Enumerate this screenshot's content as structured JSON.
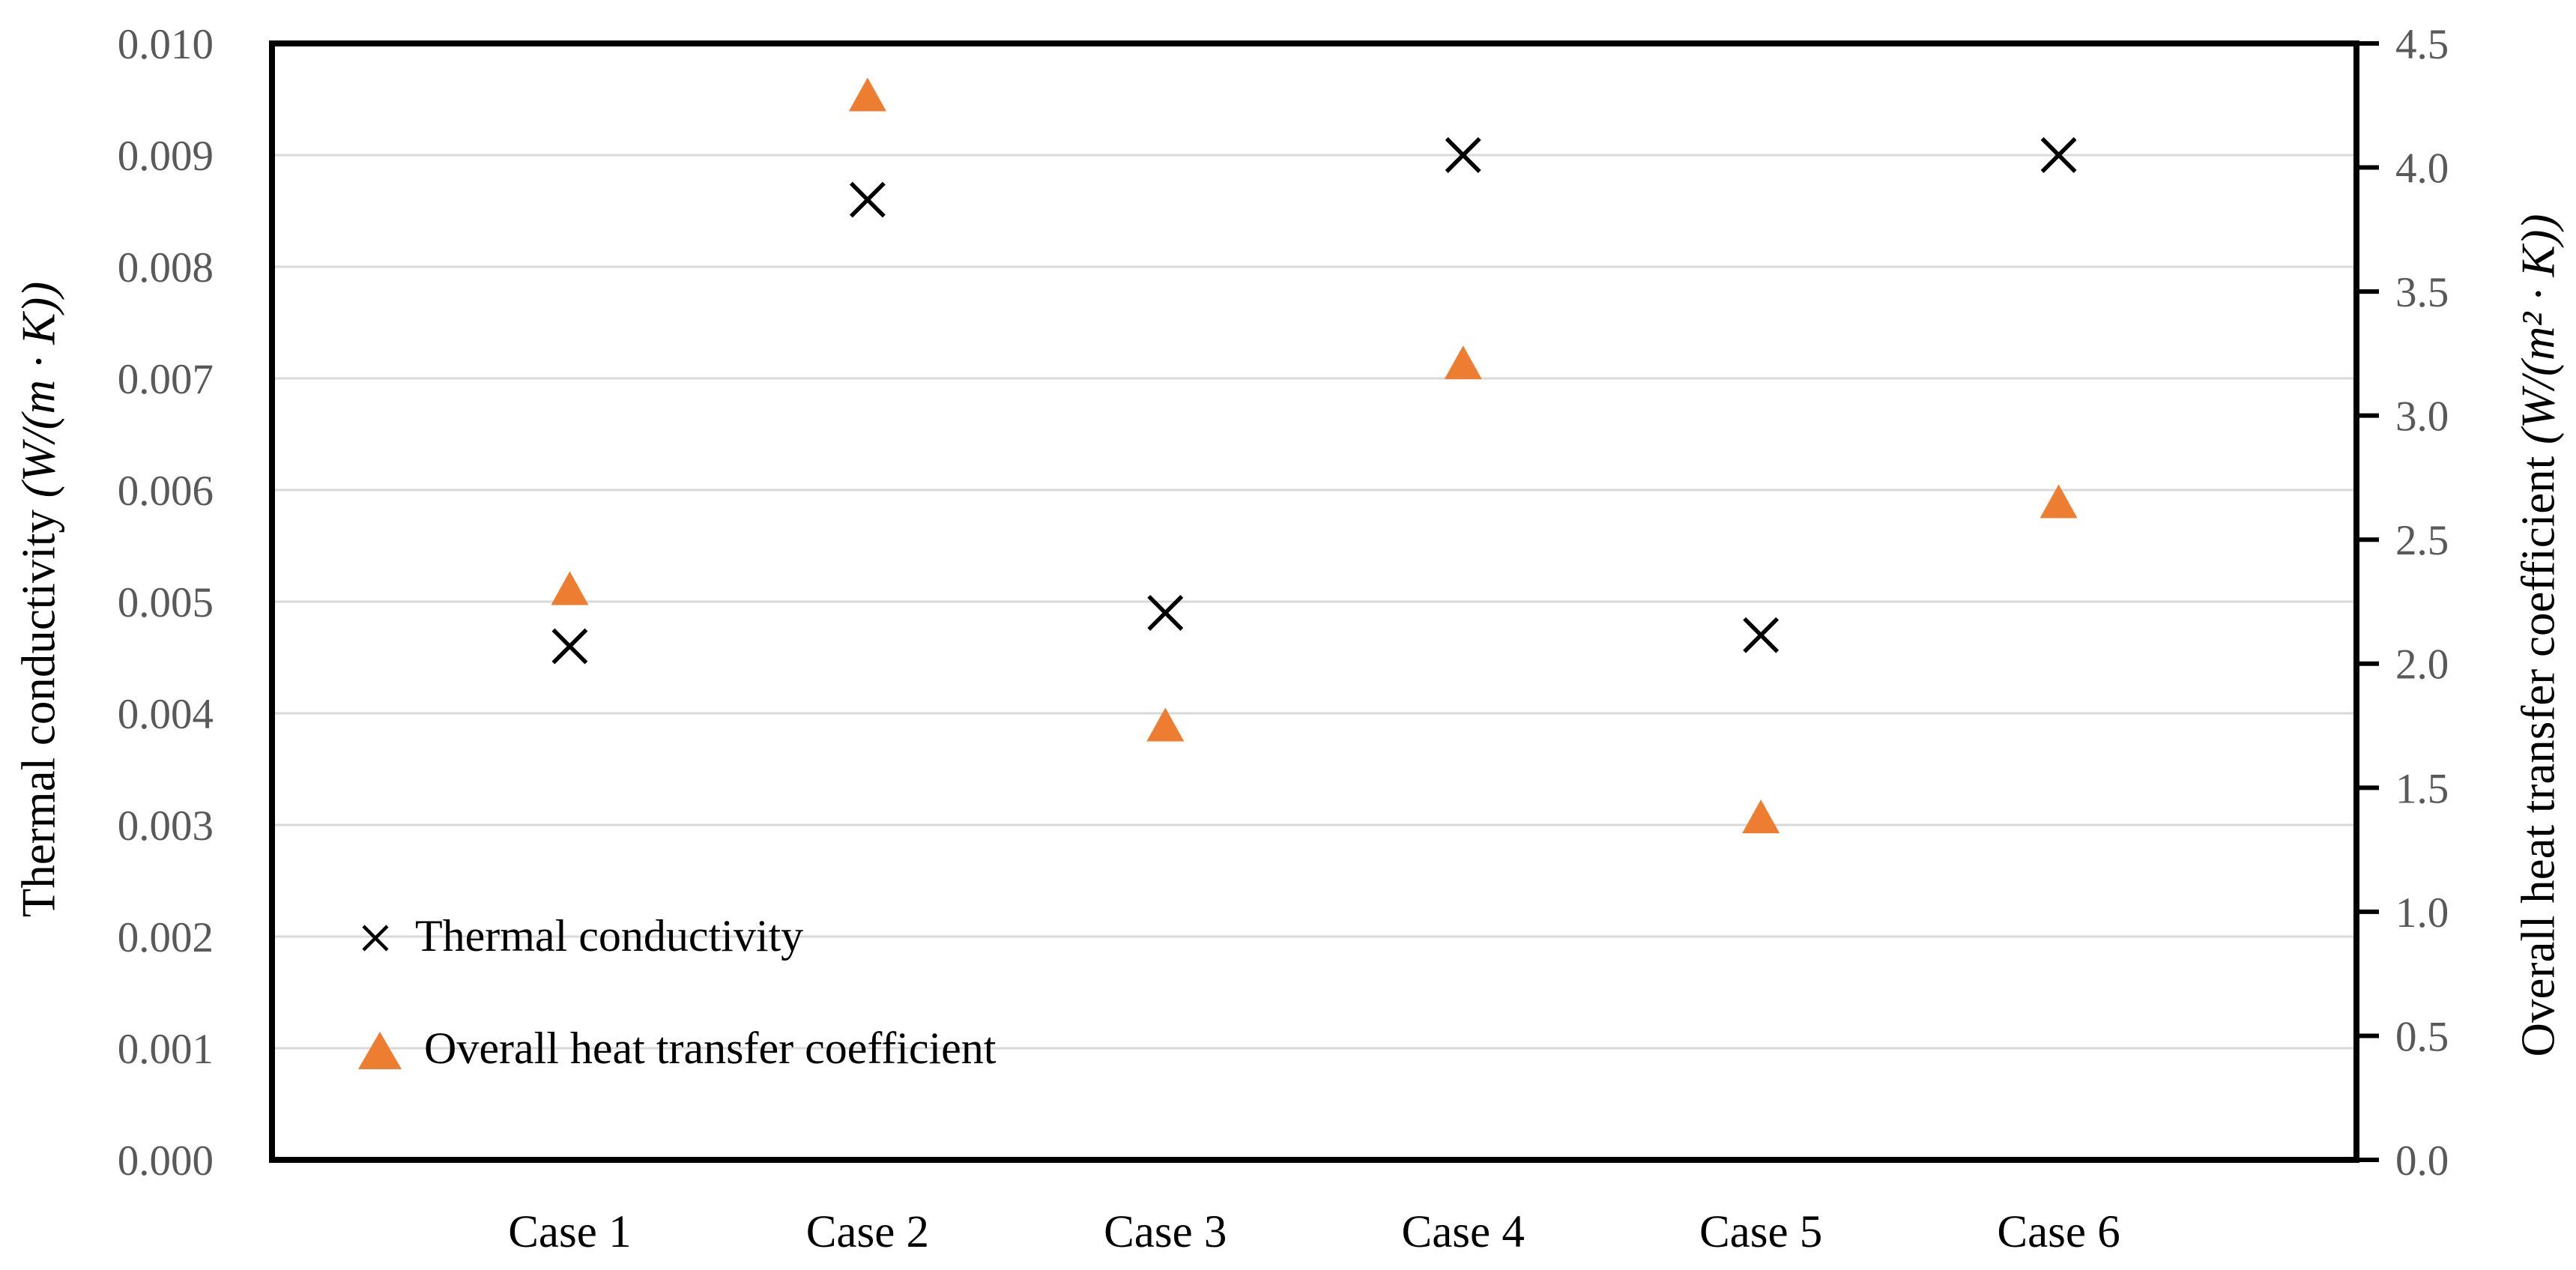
{
  "chart_data": {
    "type": "scatter",
    "categories": [
      "Case 1",
      "Case 2",
      "Case 3",
      "Case 4",
      "Case 5",
      "Case 6"
    ],
    "series": [
      {
        "name": "Thermal conductivity",
        "axis": "left",
        "marker": "x-cross-icon",
        "color": "#000000",
        "values": [
          0.0046,
          0.0086,
          0.0049,
          0.009,
          0.0047,
          0.009
        ]
      },
      {
        "name": "Overall heat transfer coefficient",
        "axis": "right",
        "marker": "triangle-icon",
        "color": "#ED7D31",
        "values": [
          2.3,
          4.29,
          1.75,
          3.21,
          1.38,
          2.65
        ]
      }
    ],
    "left_axis": {
      "title_text": "Thermal conductivity",
      "title_unit": "(W/(m ∙ K))",
      "min": 0,
      "max": 0.01,
      "step": 0.001,
      "tick_labels": [
        "0.000",
        "0.001",
        "0.002",
        "0.003",
        "0.004",
        "0.005",
        "0.006",
        "0.007",
        "0.008",
        "0.009",
        "0.010"
      ]
    },
    "right_axis": {
      "title_text": "Overall heat transfer coefficient",
      "title_unit": "(W/(m² ∙ K))",
      "min": 0,
      "max": 4.5,
      "step": 0.5,
      "tick_labels": [
        "0.0",
        "0.5",
        "1.0",
        "1.5",
        "2.0",
        "2.5",
        "3.0",
        "3.5",
        "4.0",
        "4.5"
      ]
    },
    "x_axis": {
      "tick_labels": [
        "Case 1",
        "Case 2",
        "Case 3",
        "Case 4",
        "Case 5",
        "Case 6"
      ]
    },
    "grid": true,
    "legend": {
      "position": "inside-bottom-left",
      "items": [
        {
          "marker": "x-cross-icon",
          "color": "#000000",
          "label": "Thermal conductivity"
        },
        {
          "marker": "triangle-icon",
          "color": "#ED7D31",
          "label": "Overall heat transfer coefficient"
        }
      ]
    },
    "colors": {
      "gridline": "#D9D9D9",
      "axis_line": "#000000",
      "tick_label": "#595959",
      "category_label": "#000000",
      "accent_orange": "#ED7D31"
    }
  }
}
